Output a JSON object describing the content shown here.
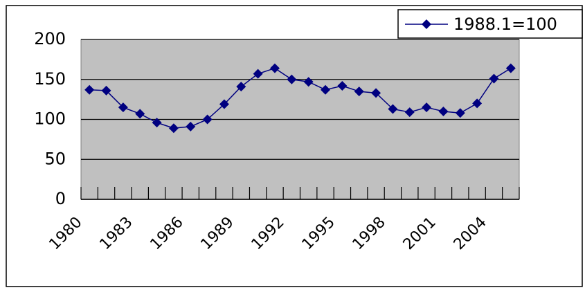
{
  "chart_data": {
    "type": "line",
    "categories": [
      "1980",
      null,
      null,
      "1983",
      null,
      null,
      "1986",
      null,
      null,
      "1989",
      null,
      null,
      "1992",
      null,
      null,
      "1995",
      null,
      null,
      "1998",
      null,
      null,
      "2001",
      null,
      null,
      "2004",
      null
    ],
    "series": [
      {
        "name": "1988.1=100",
        "color": "#000080",
        "values": [
          137,
          136,
          115,
          107,
          96,
          89,
          91,
          100,
          119,
          141,
          157,
          164,
          150,
          147,
          137,
          142,
          135,
          133,
          113,
          109,
          115,
          110,
          108,
          120,
          151,
          164
        ]
      }
    ],
    "ylim": [
      0,
      200
    ],
    "yticks": [
      0,
      50,
      100,
      150,
      200
    ],
    "grid": true,
    "legend": "top-right"
  }
}
